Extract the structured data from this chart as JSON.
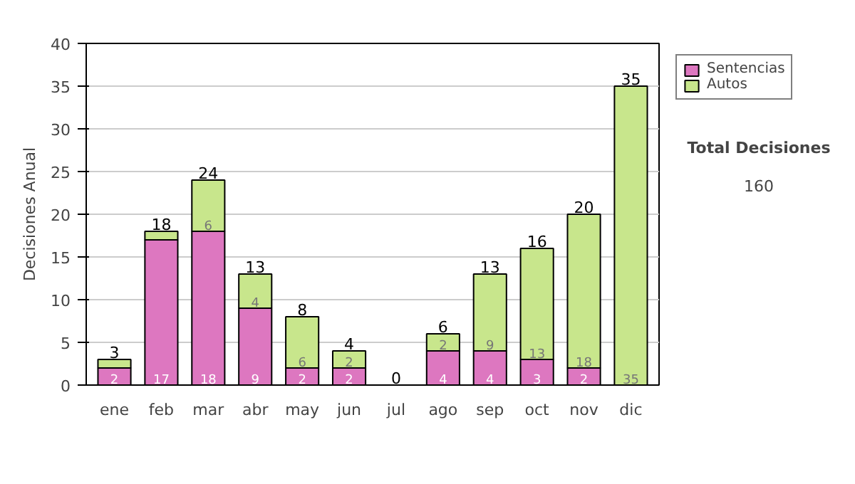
{
  "chart_data": {
    "type": "bar",
    "stacked": true,
    "ylabel": "Decisiones Anual",
    "categories": [
      "ene",
      "feb",
      "mar",
      "abr",
      "may",
      "jun",
      "jul",
      "ago",
      "sep",
      "oct",
      "nov",
      "dic"
    ],
    "series": [
      {
        "name": "Sentencias",
        "color": "#dd77c0",
        "values": [
          2,
          17,
          18,
          9,
          2,
          2,
          0,
          4,
          4,
          3,
          2,
          0
        ],
        "value_labels": [
          "2",
          "17",
          "18",
          "9",
          "2",
          "2",
          null,
          "4",
          "4",
          "3",
          "2",
          null
        ]
      },
      {
        "name": "Autos",
        "color": "#c8e68c",
        "values": [
          1,
          1,
          6,
          4,
          6,
          2,
          0,
          2,
          9,
          13,
          18,
          35
        ],
        "value_labels": [
          null,
          null,
          "6",
          "4",
          "6",
          "2",
          null,
          "2",
          "9",
          "13",
          "18",
          "35"
        ]
      }
    ],
    "totals": [
      "3",
      "18",
      "24",
      "13",
      "8",
      "4",
      "0",
      "6",
      "13",
      "16",
      "20",
      "35"
    ],
    "ylim": [
      0,
      40
    ],
    "yticks": [
      0,
      5,
      10,
      15,
      20,
      25,
      30,
      35,
      40
    ],
    "grid": "y",
    "legend": "right",
    "annotations": [
      "Total Decisiones",
      "160"
    ]
  }
}
